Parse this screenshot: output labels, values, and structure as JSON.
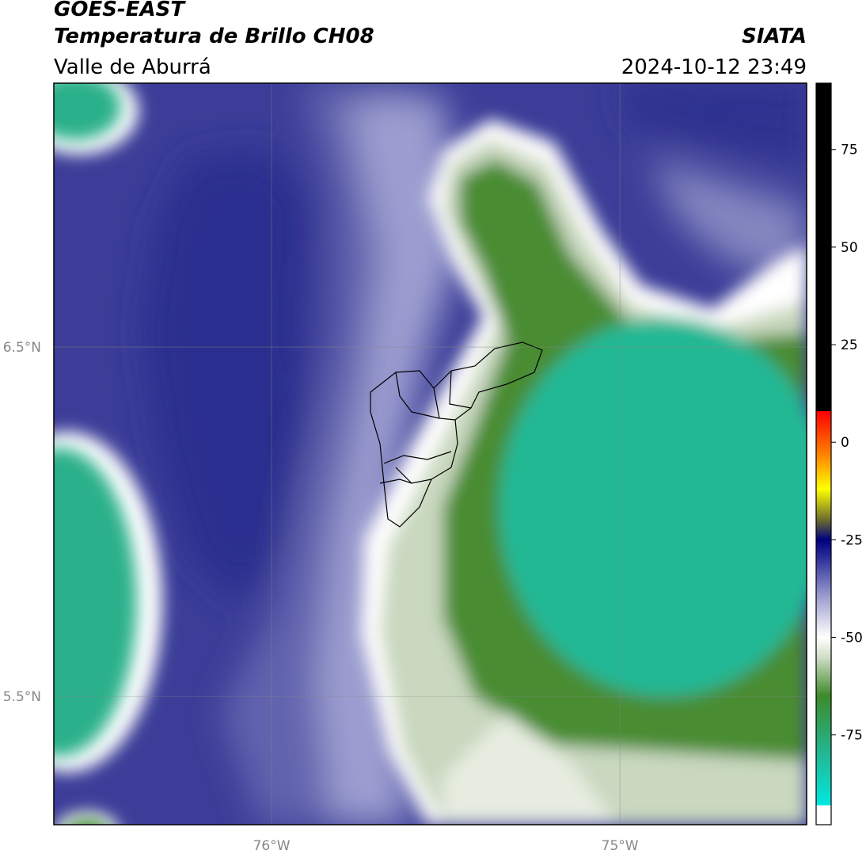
{
  "header": {
    "title": "GOES-EAST",
    "subtitle": "Temperatura de Brillo CH08",
    "region": "Valle de Aburrá",
    "source": "SIATA",
    "timestamp": "2024-10-12 23:49"
  },
  "map": {
    "xlim": [
      -76.625,
      -74.464
    ],
    "ylim": [
      5.133,
      7.255
    ],
    "xticks": [
      {
        "value": -76,
        "label": "76°W"
      },
      {
        "value": -75,
        "label": "75°W"
      }
    ],
    "yticks": [
      {
        "value": 6.5,
        "label": "6.5°N"
      },
      {
        "value": 5.5,
        "label": "5.5°N"
      }
    ],
    "grid": true
  },
  "colorbar": {
    "lim": [
      -98,
      92
    ],
    "ticks": [
      75,
      50,
      25,
      0,
      -25,
      -50,
      -75
    ],
    "stops": [
      {
        "value": -98,
        "color": "#ffffff"
      },
      {
        "value": -93,
        "color": "#ffffff"
      },
      {
        "value": -93,
        "color": "#00e8e0"
      },
      {
        "value": -80,
        "color": "#22b894"
      },
      {
        "value": -65,
        "color": "#3e8a2a"
      },
      {
        "value": -55,
        "color": "#d2dec8"
      },
      {
        "value": -50,
        "color": "#ffffff"
      },
      {
        "value": -40,
        "color": "#a0a2d2"
      },
      {
        "value": -30,
        "color": "#30339a"
      },
      {
        "value": -25,
        "color": "#000080"
      },
      {
        "value": -20,
        "color": "#6a6a30"
      },
      {
        "value": -12,
        "color": "#ffff00"
      },
      {
        "value": -3,
        "color": "#ff8000"
      },
      {
        "value": 8,
        "color": "#ff0000"
      },
      {
        "value": 8,
        "color": "#000000"
      },
      {
        "value": 92,
        "color": "#000000"
      }
    ]
  }
}
